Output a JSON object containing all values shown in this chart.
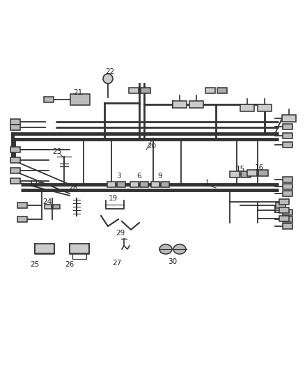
{
  "bg_color": "#ffffff",
  "line_color": "#333333",
  "text_color": "#222222",
  "fig_width": 4.38,
  "fig_height": 5.33,
  "dpi": 100
}
